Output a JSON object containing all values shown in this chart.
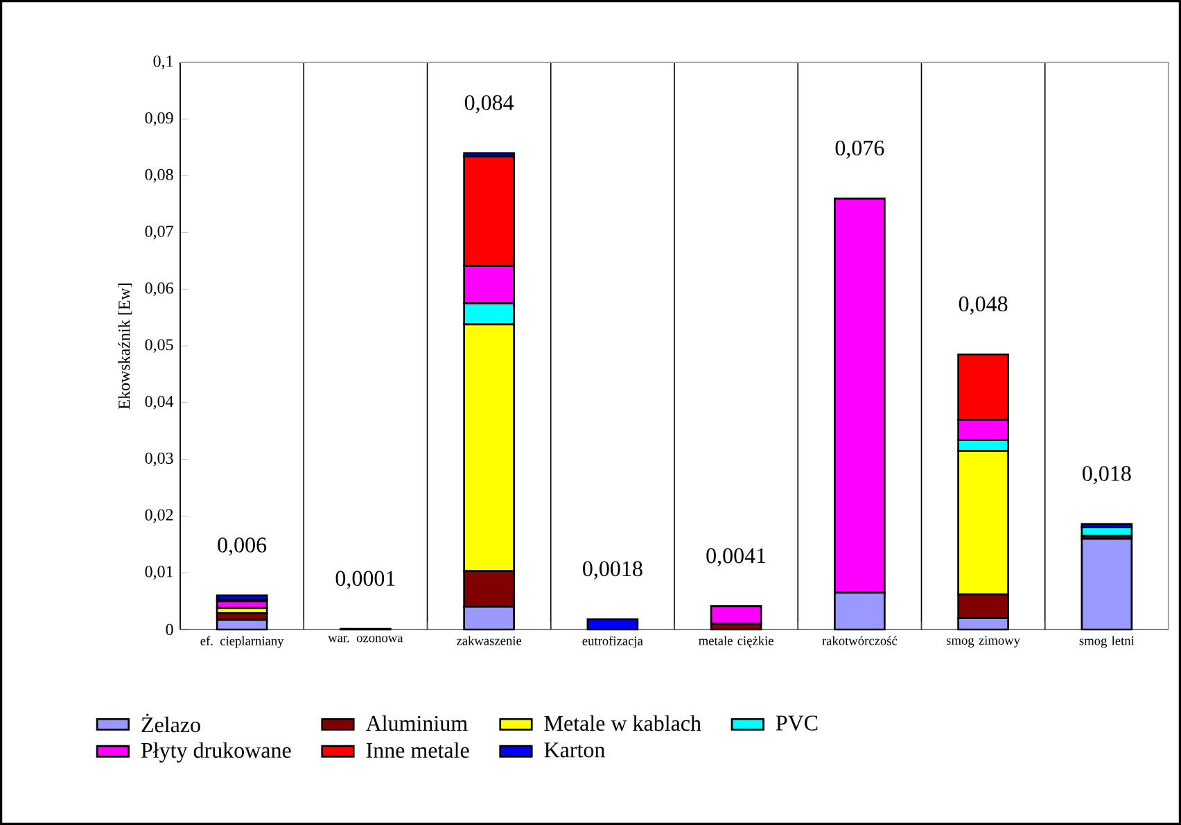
{
  "chart_data": {
    "type": "bar",
    "stacked": true,
    "categories": [
      "ef. cieplarniany",
      "war. ozonowa",
      "zakwaszenie",
      "eutrofizacja",
      "metale ciężkie",
      "rakotwórczość",
      "smog zimowy",
      "smog letni"
    ],
    "series": [
      {
        "name": "Żelazo",
        "color": "#9999ff",
        "values": [
          0.0017,
          0,
          0.004,
          0,
          0,
          0.0065,
          0.002,
          0.016
        ]
      },
      {
        "name": "Aluminium",
        "color": "#800000",
        "values": [
          0.0012,
          0,
          0.0063,
          0,
          0.001,
          0,
          0.0042,
          0.0005
        ]
      },
      {
        "name": "Metale w kablach",
        "color": "#ffff00",
        "values": [
          0.0009,
          0,
          0.0435,
          0,
          0,
          0,
          0.0253,
          0
        ]
      },
      {
        "name": "PVC",
        "color": "#00ffff",
        "values": [
          0,
          0,
          0.0037,
          0,
          0,
          0,
          0.0019,
          0.0015
        ]
      },
      {
        "name": "Płyty drukowane",
        "color": "#ff00ff",
        "values": [
          0.0012,
          0,
          0.0066,
          0,
          0.0031,
          0.0695,
          0.0036,
          0
        ]
      },
      {
        "name": "Inne metale",
        "color": "#ff0000",
        "values": [
          0.0003,
          0,
          0.0193,
          0,
          0,
          0,
          0.0115,
          0
        ]
      },
      {
        "name": "Karton",
        "color": "#0000ff",
        "values": [
          0.0007,
          0.0001,
          0.0006,
          0.0018,
          0,
          0,
          0,
          0.0006
        ]
      }
    ],
    "totals": [
      "0,006",
      "0,0001",
      "0,084",
      "0,0018",
      "0,0041",
      "0,076",
      "0,048",
      "0,018"
    ],
    "ylabel": "Ekowskaźnik [Ew]",
    "ylim": [
      0,
      0.1
    ],
    "yticks": [
      0,
      {
        "value": 0.01,
        "label": "0,01"
      },
      {
        "value": 0.02,
        "label": "0,02"
      },
      {
        "value": 0.03,
        "label": "0,03"
      },
      {
        "value": 0.04,
        "label": "0,04"
      },
      {
        "value": 0.05,
        "label": "0,05"
      },
      {
        "value": 0.06,
        "label": "0,06"
      },
      {
        "value": 0.07,
        "label": "0,07"
      },
      {
        "value": 0.08,
        "label": "0,08"
      },
      {
        "value": 0.09,
        "label": "0,09"
      },
      {
        "value": 0.1,
        "label": "0,1"
      }
    ],
    "grid": "x",
    "legend": "bottom"
  }
}
